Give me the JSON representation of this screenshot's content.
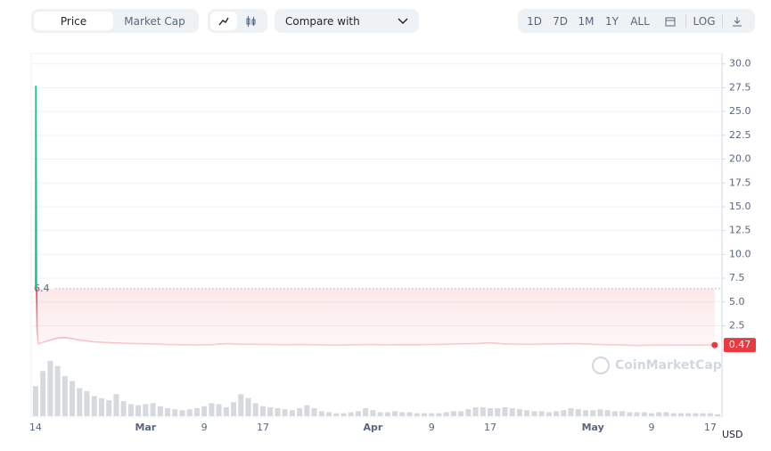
{
  "toolbar": {
    "tabs": [
      "Price",
      "Market Cap"
    ],
    "compare": "Compare with",
    "ranges": [
      "1D",
      "7D",
      "1M",
      "1Y",
      "ALL"
    ],
    "log": "LOG"
  },
  "chart_data": {
    "type": "line",
    "baseline": 6.4,
    "up_color": "#16c784",
    "down_color": "#ea3943",
    "watermark": "CoinMarketCap",
    "currency": "USD",
    "grid": true,
    "xlim": [
      -0.6,
      93.6
    ],
    "xticks": [
      {
        "value": 0,
        "label": "14"
      },
      {
        "value": 15,
        "label": "Mar"
      },
      {
        "value": 23,
        "label": "9"
      },
      {
        "value": 31,
        "label": "17"
      },
      {
        "value": 46,
        "label": "Apr"
      },
      {
        "value": 54,
        "label": "9"
      },
      {
        "value": 62,
        "label": "17"
      },
      {
        "value": 76,
        "label": "May"
      },
      {
        "value": 84,
        "label": "9"
      },
      {
        "value": 92,
        "label": "17"
      }
    ],
    "ylim": [
      -7.1,
      31.1
    ],
    "yticks": [
      2.5,
      {
        "value": 5,
        "label": "5.0"
      },
      7.5,
      {
        "value": 10,
        "label": "10.0"
      },
      12.5,
      {
        "value": 15,
        "label": "15.0"
      },
      17.5,
      {
        "value": 20,
        "label": "20.0"
      },
      22.5,
      {
        "value": 25,
        "label": "25.0"
      },
      27.5,
      {
        "value": 30,
        "label": "30.0"
      }
    ],
    "x": [
      0,
      0.03,
      0.06,
      0.09,
      0.12,
      0.15,
      0.2,
      0.35,
      1,
      2,
      3,
      4,
      5,
      6,
      8,
      10,
      12,
      14,
      16,
      18,
      20,
      22,
      24,
      26,
      28,
      30,
      32,
      34,
      36,
      38,
      40,
      42,
      44,
      46,
      48,
      50,
      52,
      54,
      56,
      58,
      60,
      62,
      64,
      66,
      68,
      70,
      72,
      74,
      76,
      78,
      80,
      82,
      84,
      86,
      88,
      90,
      92.6
    ],
    "series": [
      {
        "values": [
          6.4,
          27.7,
          23.2,
          18.5,
          7.2,
          5.5,
          2.1,
          0.6,
          0.75,
          1.0,
          1.2,
          1.25,
          1.15,
          1.0,
          0.8,
          0.72,
          0.65,
          0.62,
          0.58,
          0.52,
          0.5,
          0.48,
          0.5,
          0.62,
          0.55,
          0.55,
          0.53,
          0.5,
          0.52,
          0.5,
          0.47,
          0.47,
          0.5,
          0.52,
          0.48,
          0.5,
          0.5,
          0.52,
          0.55,
          0.6,
          0.62,
          0.7,
          0.58,
          0.55,
          0.55,
          0.58,
          0.6,
          0.62,
          0.55,
          0.5,
          0.48,
          0.42,
          0.45,
          0.45,
          0.46,
          0.47,
          0.47
        ]
      }
    ],
    "volume": {
      "color": "#d6d9de",
      "values": [
        30,
        45,
        55,
        50,
        40,
        35,
        28,
        25,
        20,
        18,
        16,
        22,
        15,
        12,
        11,
        12,
        13,
        10,
        8,
        7,
        6,
        7,
        8,
        10,
        13,
        12,
        9,
        14,
        22,
        18,
        13,
        10,
        9,
        8,
        7,
        6,
        8,
        11,
        8,
        5,
        4,
        3,
        3,
        4,
        5,
        8,
        6,
        4,
        4,
        5,
        4,
        4,
        3,
        3,
        3,
        3,
        4,
        5,
        5,
        7,
        9,
        9,
        8,
        8,
        9,
        8,
        7,
        6,
        5,
        5,
        4,
        5,
        6,
        8,
        7,
        6,
        6,
        7,
        6,
        5,
        5,
        4,
        4,
        4,
        3,
        4,
        4,
        3,
        3,
        3,
        3,
        3,
        3,
        2
      ]
    }
  }
}
